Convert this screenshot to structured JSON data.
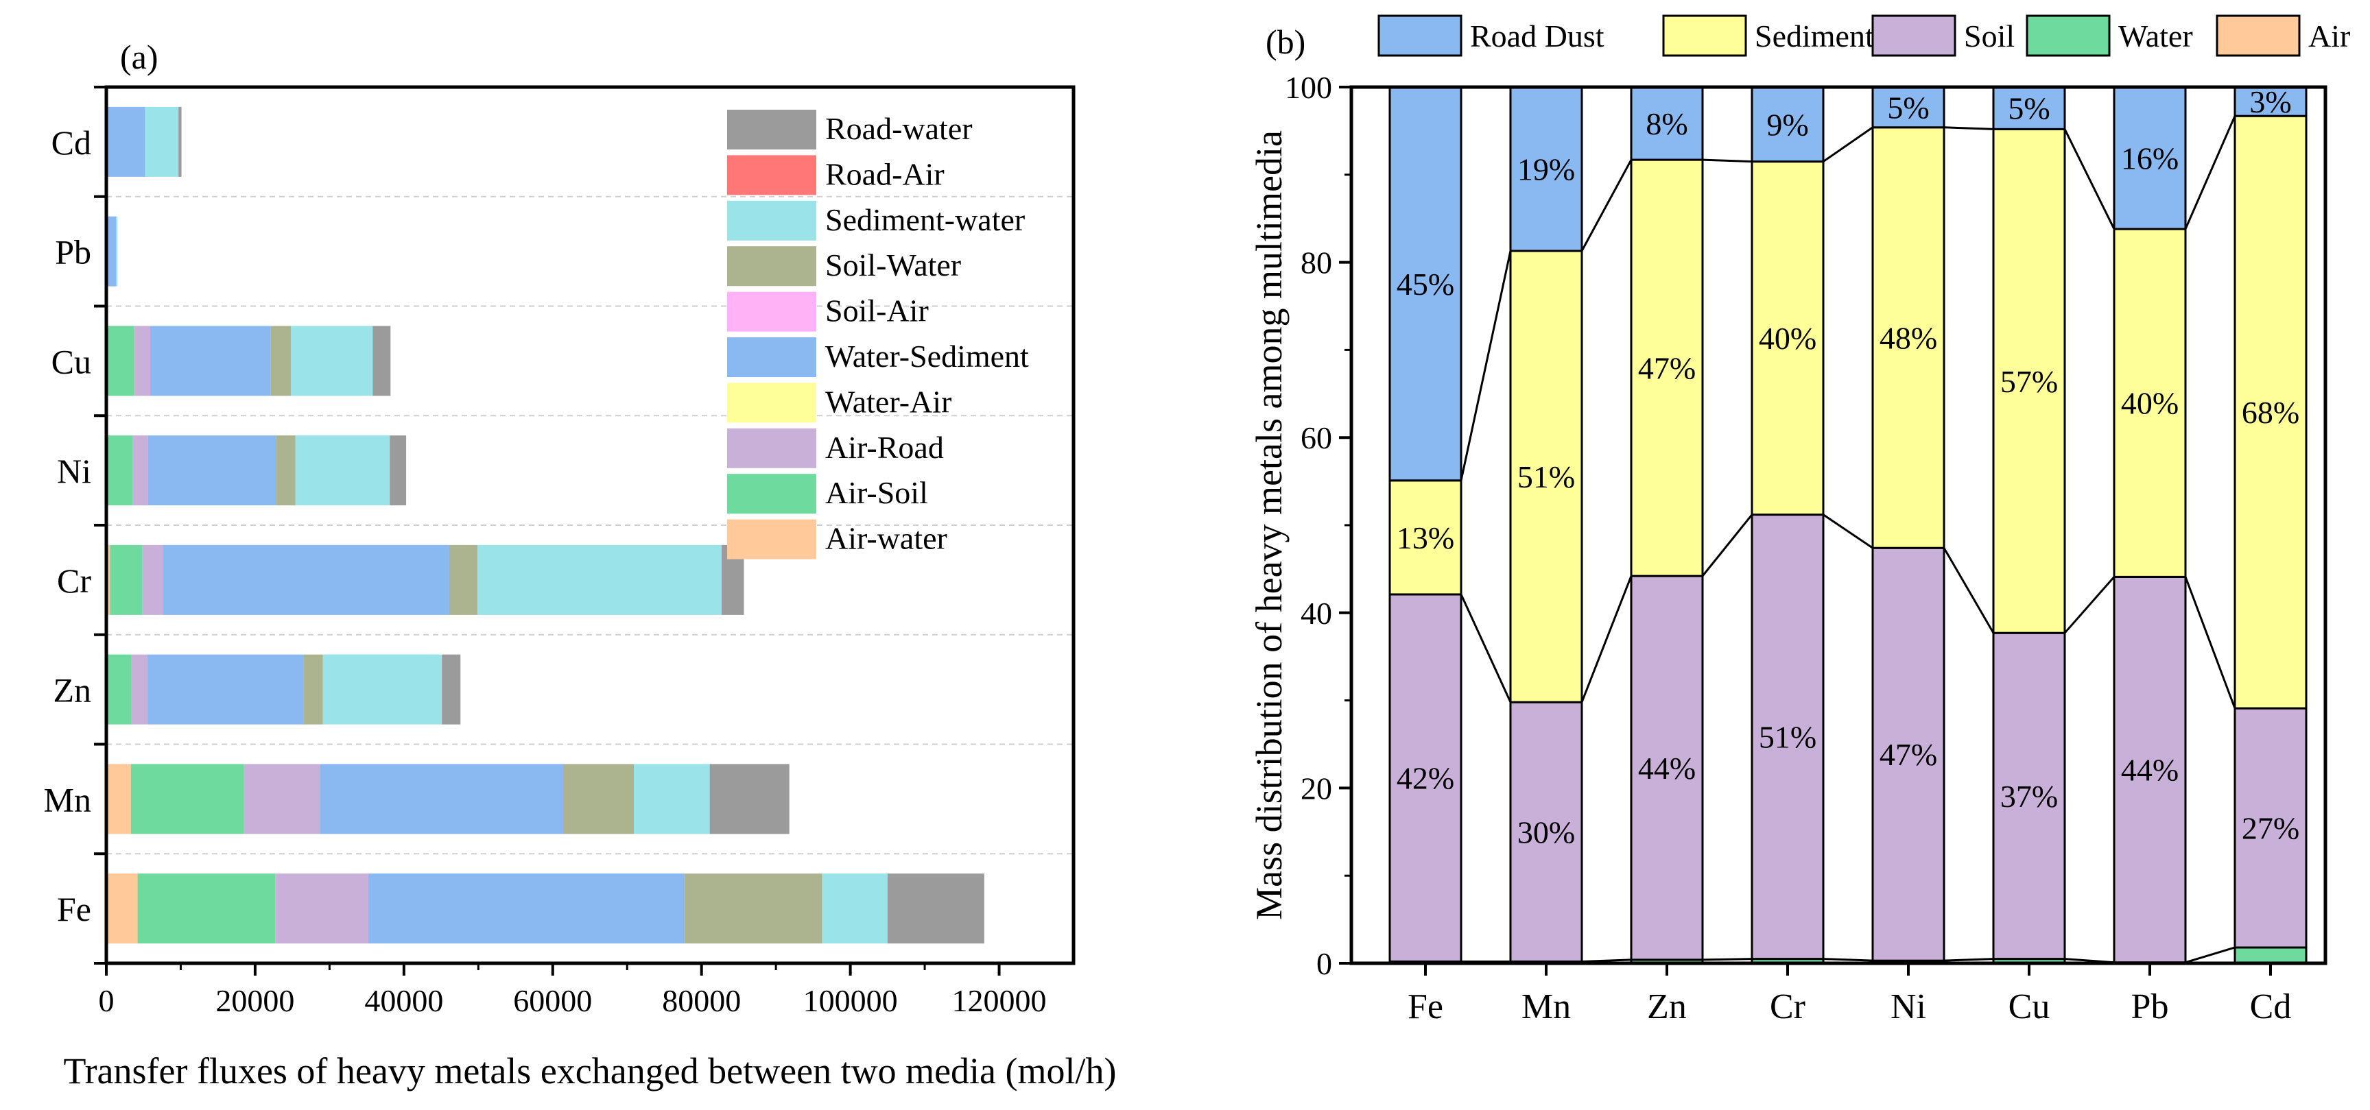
{
  "chart_data": [
    {
      "panel": "(a)",
      "type": "bar",
      "orientation": "horizontal",
      "stacked": true,
      "categories": [
        "Fe",
        "Mn",
        "Zn",
        "Cr",
        "Ni",
        "Cu",
        "Pb",
        "Cd"
      ],
      "xlabel": "Transfer fluxes of heavy metals exchanged between two media (mol/h)",
      "xlim": [
        0,
        130000
      ],
      "xticks": [
        0,
        20000,
        40000,
        60000,
        80000,
        100000,
        120000
      ],
      "xtick_labels": [
        "0",
        "20000",
        "40000",
        "60000",
        "80000",
        "100000",
        "120000"
      ],
      "grid": "horizontal dashed",
      "legend_position": "top-right",
      "series": [
        {
          "name": "Air-water",
          "color": "#FFC999",
          "values": [
            4200,
            3300,
            200,
            500,
            200,
            200,
            0,
            0
          ]
        },
        {
          "name": "Air-Soil",
          "color": "#6EDA9E",
          "values": [
            18500,
            15200,
            3200,
            4300,
            3300,
            3500,
            0,
            0
          ]
        },
        {
          "name": "Air-Road",
          "color": "#C8B0D8",
          "values": [
            12500,
            10200,
            2100,
            2800,
            2100,
            2200,
            0,
            0
          ]
        },
        {
          "name": "Water-Air",
          "color": "#FFFF99",
          "values": [
            0,
            0,
            0,
            0,
            0,
            0,
            0,
            0
          ]
        },
        {
          "name": "Water-Sediment",
          "color": "#8AB8F0",
          "values": [
            42500,
            32700,
            21000,
            38500,
            17200,
            16200,
            1300,
            5200
          ]
        },
        {
          "name": "Soil-Air",
          "color": "#FFB3F6",
          "values": [
            0,
            0,
            0,
            0,
            0,
            0,
            0,
            0
          ]
        },
        {
          "name": "Soil-Water",
          "color": "#ABB48E",
          "values": [
            18500,
            9500,
            2600,
            3800,
            2600,
            2700,
            0,
            0
          ]
        },
        {
          "name": "Sediment-water",
          "color": "#9AE3E8",
          "values": [
            8800,
            10200,
            16000,
            32800,
            12700,
            11000,
            200,
            4500
          ]
        },
        {
          "name": "Road-Air",
          "color": "#FF7777",
          "values": [
            0,
            0,
            0,
            0,
            0,
            0,
            0,
            0
          ]
        },
        {
          "name": "Road-water",
          "color": "#9B9B9B",
          "values": [
            13000,
            10700,
            2500,
            3000,
            2200,
            2400,
            0,
            400
          ]
        }
      ]
    },
    {
      "panel": "(b)",
      "type": "bar",
      "orientation": "vertical",
      "stacked": true,
      "categories": [
        "Fe",
        "Mn",
        "Zn",
        "Cr",
        "Ni",
        "Cu",
        "Pb",
        "Cd"
      ],
      "ylabel": "Mass distribution of heavy metals among multimedia",
      "ylim": [
        0,
        100
      ],
      "yticks": [
        0,
        20,
        40,
        60,
        80,
        100
      ],
      "ytick_labels": [
        "0",
        "20",
        "40",
        "60",
        "80",
        "100"
      ],
      "legend_position": "top",
      "connector_lines": true,
      "series": [
        {
          "name": "Air",
          "color": "#FFC999",
          "values": [
            0,
            0,
            0,
            0,
            0,
            0,
            0,
            0
          ],
          "labels": [
            "",
            "",
            "",
            "",
            "",
            "",
            "",
            ""
          ]
        },
        {
          "name": "Water",
          "color": "#6EDA9E",
          "values": [
            0.2,
            0.2,
            0.4,
            0.5,
            0.3,
            0.5,
            0.1,
            1.8
          ],
          "labels": [
            "",
            "",
            "",
            "",
            "",
            "",
            "",
            ""
          ]
        },
        {
          "name": "Soil",
          "color": "#C8B0D8",
          "values": [
            41.9,
            29.6,
            43.8,
            50.7,
            47.1,
            37.2,
            44.0,
            27.3
          ],
          "labels": [
            "42%",
            "30%",
            "44%",
            "51%",
            "47%",
            "37%",
            "44%",
            "27%"
          ]
        },
        {
          "name": "Sediment",
          "color": "#FFFF99",
          "values": [
            13.0,
            51.5,
            47.5,
            40.3,
            48.0,
            57.5,
            39.7,
            67.6
          ],
          "labels": [
            "13%",
            "51%",
            "47%",
            "40%",
            "48%",
            "57%",
            "40%",
            "68%"
          ]
        },
        {
          "name": "Road Dust",
          "color": "#8AB8F0",
          "values": [
            44.9,
            18.7,
            8.3,
            8.5,
            4.6,
            4.8,
            16.2,
            3.3
          ],
          "labels": [
            "45%",
            "19%",
            "8%",
            "9%",
            "5%",
            "5%",
            "16%",
            "3%"
          ]
        }
      ]
    }
  ]
}
